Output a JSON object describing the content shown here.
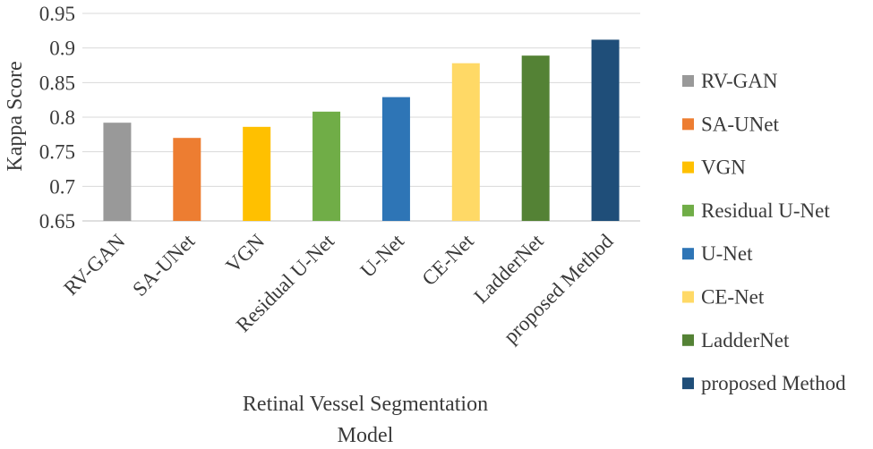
{
  "chart_data": {
    "type": "bar",
    "title": "",
    "xlabel": "Retinal Vessel Segmentation Model",
    "ylabel": "Kappa Score",
    "categories": [
      "RV-GAN",
      "SA-UNet",
      "VGN",
      "Residual U-Net",
      "U-Net",
      "CE-Net",
      "LadderNet",
      "proposed Method"
    ],
    "values": [
      0.792,
      0.77,
      0.786,
      0.808,
      0.829,
      0.878,
      0.889,
      0.912
    ],
    "colors": [
      "#999999",
      "#ED7D31",
      "#FFC000",
      "#70AD47",
      "#2E75B6",
      "#FFD966",
      "#548235",
      "#1F4E79"
    ],
    "ylim": [
      0.65,
      0.95
    ],
    "yticks": [
      "0.65",
      "0.7",
      "0.75",
      "0.8",
      "0.85",
      "0.9",
      "0.95"
    ],
    "grid": true,
    "legend_position": "right"
  }
}
